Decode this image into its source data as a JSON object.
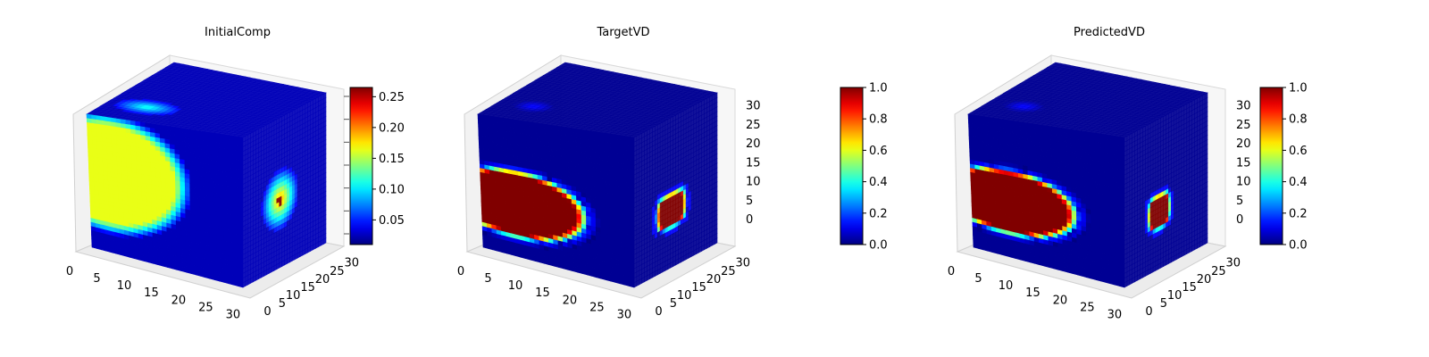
{
  "chart_data": [
    {
      "type": "voxel-3d",
      "title": "InitialComp",
      "x_ticks": [
        "0",
        "5",
        "10",
        "15",
        "20",
        "25",
        "30"
      ],
      "y_ticks": [
        "0",
        "5",
        "10",
        "15",
        "20",
        "25",
        "30"
      ],
      "z_ticks": [],
      "xlim": [
        0,
        32
      ],
      "ylim": [
        0,
        32
      ],
      "zlim": [
        0,
        32
      ],
      "colormap": "jet",
      "colorbar": {
        "min": 0.01,
        "max": 0.265,
        "ticks": [
          "0.05",
          "0.10",
          "0.15",
          "0.20",
          "0.25"
        ],
        "tick_values": [
          0.05,
          0.1,
          0.15,
          0.2,
          0.25
        ]
      },
      "field": {
        "kind": "diffuse",
        "front_center": [
          0.12,
          0.42
        ],
        "front_radius": [
          0.55,
          0.45
        ],
        "front_peak": 0.14,
        "side_center": [
          0.45,
          0.55
        ],
        "side_peak": 0.265,
        "top_blob": [
          0.28,
          0.3
        ],
        "top_peak": 0.08
      }
    },
    {
      "type": "voxel-3d",
      "title": "TargetVD",
      "x_ticks": [
        "0",
        "5",
        "10",
        "15",
        "20",
        "25",
        "30"
      ],
      "y_ticks": [
        "0",
        "5",
        "10",
        "15",
        "20",
        "25",
        "30"
      ],
      "z_ticks": [
        "0",
        "5",
        "10",
        "15",
        "20",
        "25",
        "30"
      ],
      "xlim": [
        0,
        32
      ],
      "ylim": [
        0,
        32
      ],
      "zlim": [
        0,
        32
      ],
      "colormap": "jet",
      "colorbar": {
        "min": 0.0,
        "max": 1.0,
        "ticks": [
          "0.0",
          "0.2",
          "0.4",
          "0.6",
          "0.8",
          "1.0"
        ],
        "tick_values": [
          0.0,
          0.2,
          0.4,
          0.6,
          0.8,
          1.0
        ]
      },
      "field": {
        "kind": "sharp",
        "front_center": [
          0.22,
          0.62
        ],
        "front_radius": [
          0.5,
          0.26
        ],
        "side_center": [
          0.45,
          0.62
        ],
        "side_radius": [
          0.2,
          0.13
        ]
      }
    },
    {
      "type": "voxel-3d",
      "title": "PredictedVD",
      "x_ticks": [
        "0",
        "5",
        "10",
        "15",
        "20",
        "25",
        "30"
      ],
      "y_ticks": [
        "0",
        "5",
        "10",
        "15",
        "20",
        "25",
        "30"
      ],
      "z_ticks": [
        "0",
        "5",
        "10",
        "15",
        "20",
        "25",
        "30"
      ],
      "xlim": [
        0,
        32
      ],
      "ylim": [
        0,
        32
      ],
      "zlim": [
        0,
        32
      ],
      "colormap": "jet",
      "colorbar": {
        "min": 0.0,
        "max": 1.0,
        "ticks": [
          "0.0",
          "0.2",
          "0.4",
          "0.6",
          "0.8",
          "1.0"
        ],
        "tick_values": [
          0.0,
          0.2,
          0.4,
          0.6,
          0.8,
          1.0
        ]
      },
      "field": {
        "kind": "sharp",
        "front_center": [
          0.24,
          0.6
        ],
        "front_radius": [
          0.48,
          0.25
        ],
        "side_center": [
          0.42,
          0.62
        ],
        "side_radius": [
          0.15,
          0.13
        ]
      }
    }
  ]
}
